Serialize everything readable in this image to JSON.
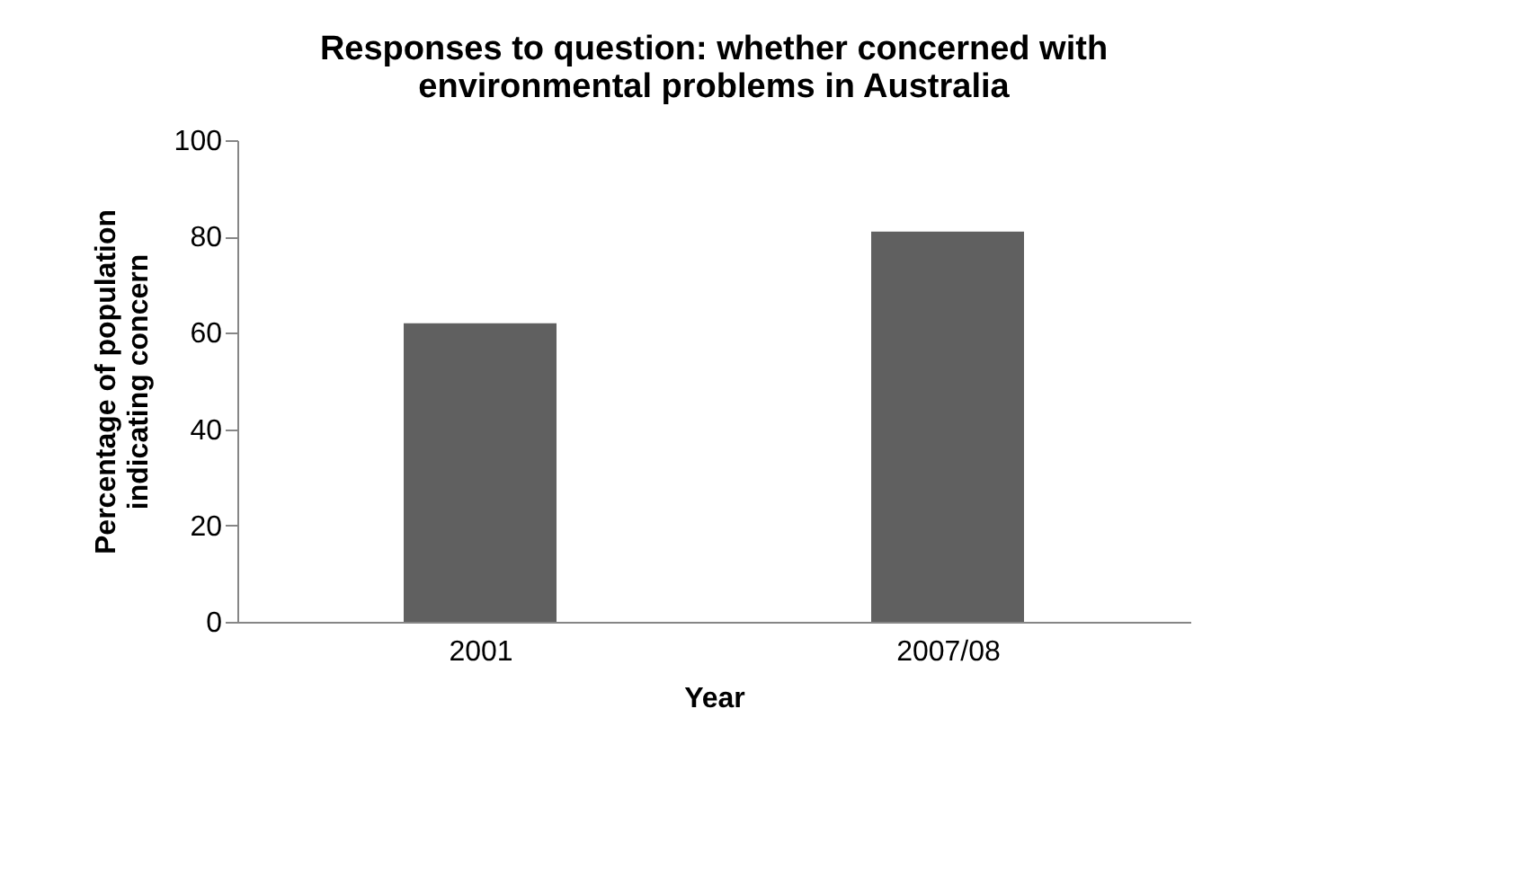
{
  "chart_data": {
    "type": "bar",
    "title": [
      "Responses to question: whether concerned with",
      "environmental problems in Australia"
    ],
    "xlabel": "Year",
    "ylabel": [
      "Percentage of population",
      "indicating concern"
    ],
    "categories": [
      "2001",
      "2007/08"
    ],
    "values": [
      62,
      81
    ],
    "color": "#606060",
    "ylim": [
      0,
      100
    ],
    "yticks": [
      0,
      20,
      40,
      60,
      80,
      100
    ],
    "grid": false
  }
}
